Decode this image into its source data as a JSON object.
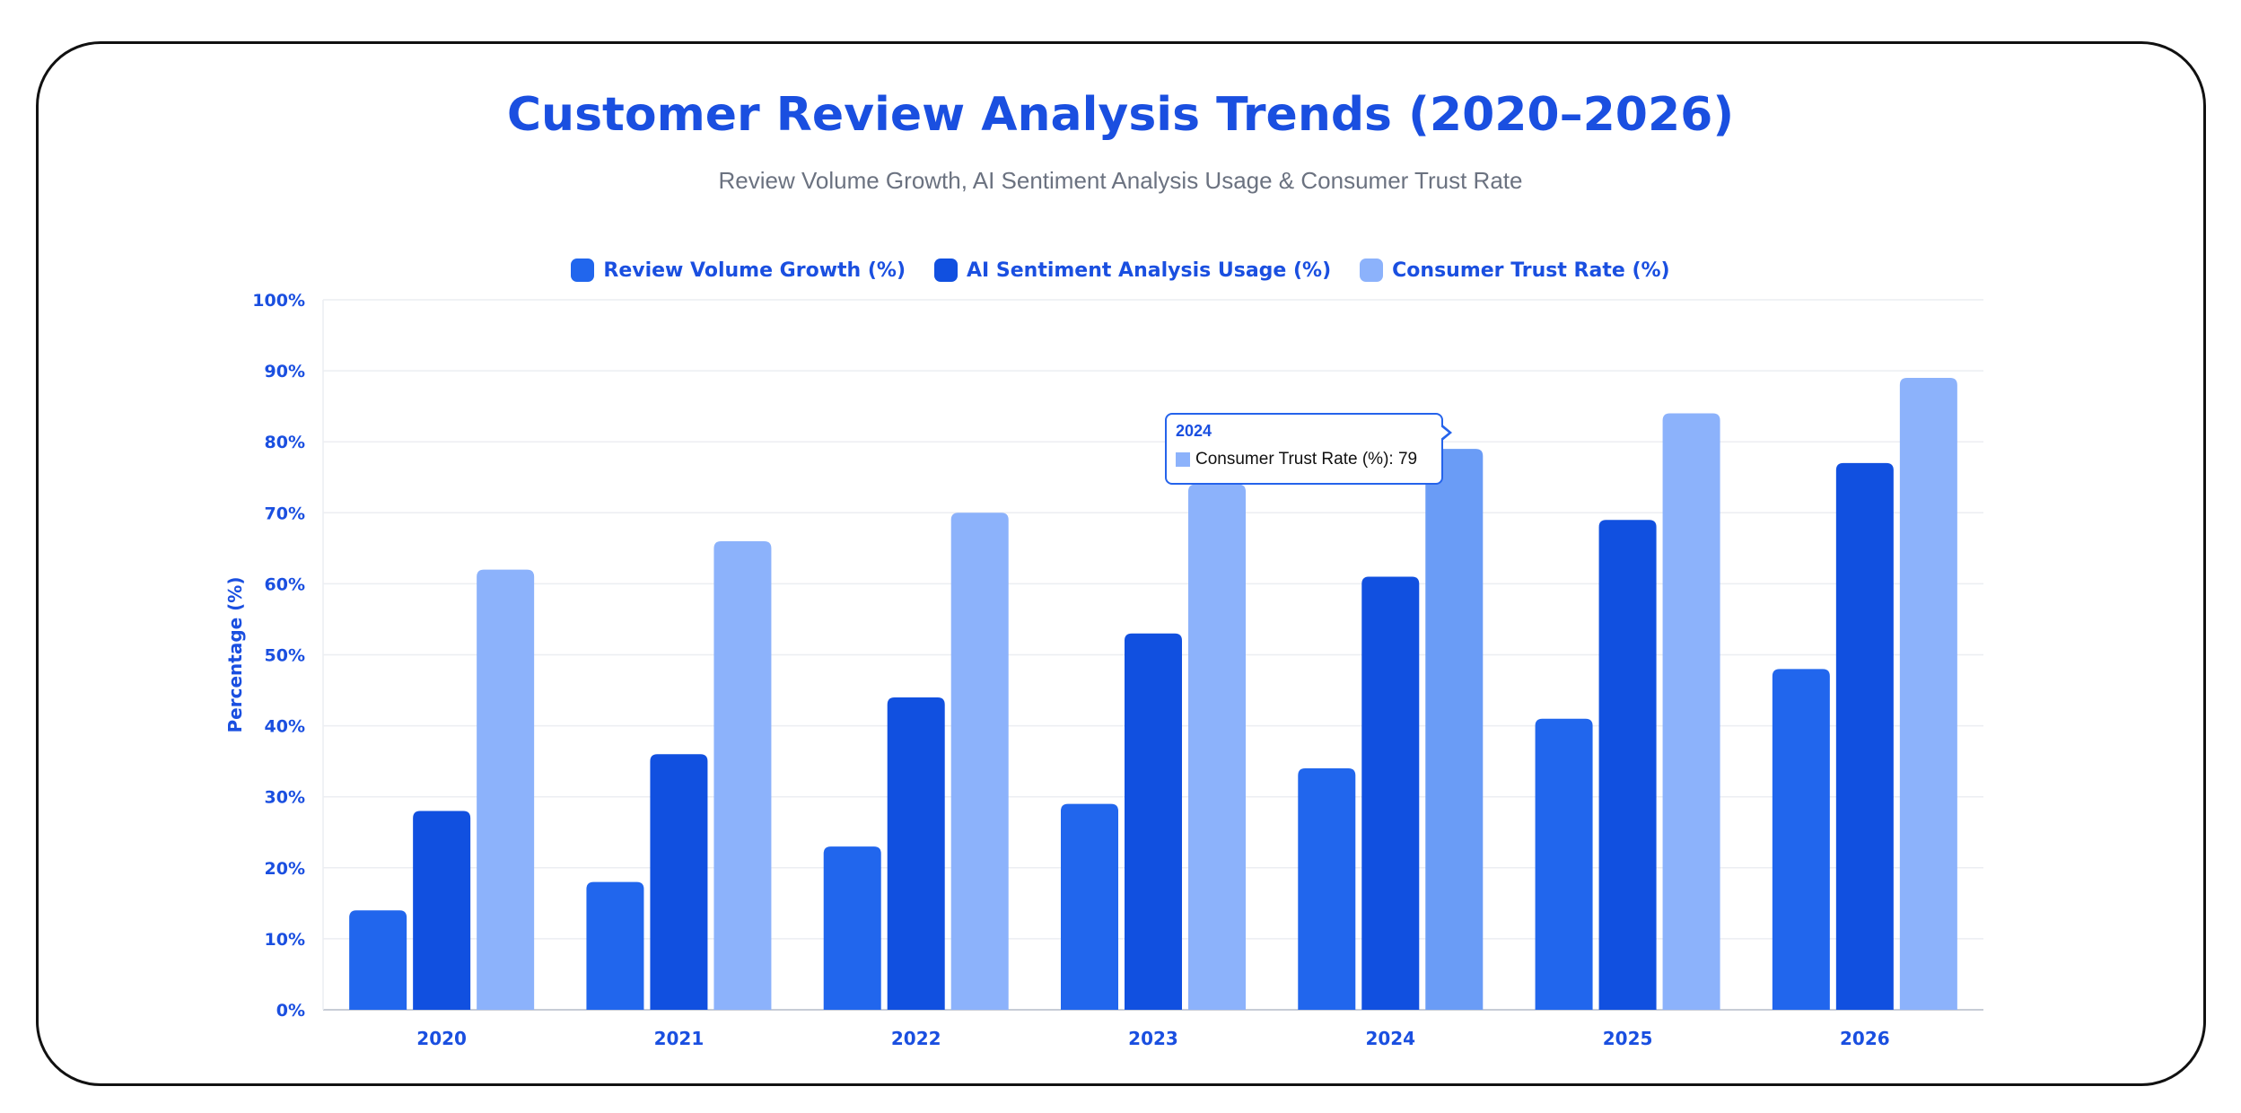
{
  "chart_data": {
    "type": "bar",
    "title": "Customer Review Analysis Trends (2020–2026)",
    "subtitle": "Review Volume Growth, AI Sentiment Analysis Usage & Consumer Trust Rate",
    "xlabel": "",
    "ylabel": "Percentage (%)",
    "ylim": [
      0,
      100
    ],
    "yticks": [
      "0%",
      "10%",
      "20%",
      "30%",
      "40%",
      "50%",
      "60%",
      "70%",
      "80%",
      "90%",
      "100%"
    ],
    "categories": [
      "2020",
      "2021",
      "2022",
      "2023",
      "2024",
      "2025",
      "2026"
    ],
    "grid": true,
    "legend_position": "top-center",
    "series": [
      {
        "name": "Review Volume Growth (%)",
        "color": "#2166ed",
        "values": [
          14,
          18,
          23,
          29,
          34,
          41,
          48
        ]
      },
      {
        "name": "AI Sentiment Analysis Usage (%)",
        "color": "#1150e0",
        "values": [
          28,
          36,
          44,
          53,
          61,
          69,
          77
        ]
      },
      {
        "name": "Consumer Trust Rate (%)",
        "color": "#8cb2fb",
        "values": [
          62,
          66,
          70,
          74,
          79,
          84,
          89
        ]
      }
    ],
    "highlight": {
      "category_index": 4,
      "series_index": 2,
      "color": "#6a9cf6"
    },
    "tooltip": {
      "title": "2024",
      "text": "Consumer Trust Rate (%): 79"
    }
  }
}
